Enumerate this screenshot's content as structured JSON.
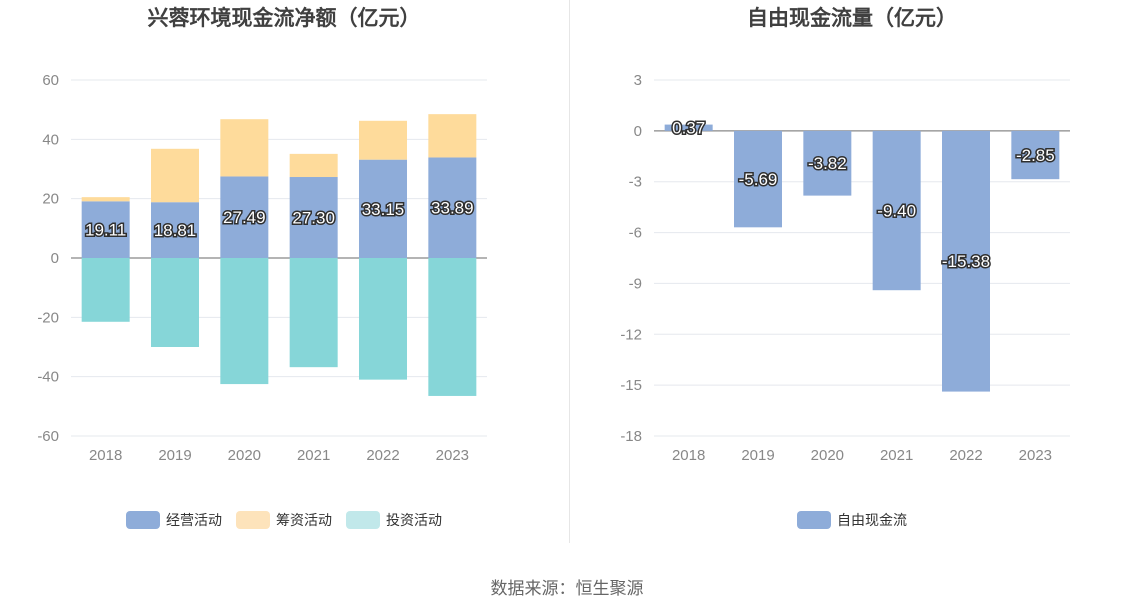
{
  "source_text": "数据来源：恒生聚源",
  "chart_data": [
    {
      "type": "bar",
      "title": "兴蓉环境现金流净额（亿元）",
      "stacked": true,
      "categories": [
        "2018",
        "2019",
        "2020",
        "2021",
        "2022",
        "2023"
      ],
      "ylim": [
        -60,
        60
      ],
      "yticks": [
        60,
        40,
        20,
        0,
        -20,
        -40,
        -60
      ],
      "grid": true,
      "legend_position": "bottom",
      "series": [
        {
          "name": "经营活动",
          "color": "#8eacd9",
          "values": [
            19.11,
            18.81,
            27.49,
            27.3,
            33.15,
            33.89
          ],
          "labels": [
            "19.11",
            "18.81",
            "27.49",
            "27.30",
            "33.15",
            "33.89"
          ]
        },
        {
          "name": "筹资活动",
          "color": "#fedb9b",
          "values": [
            1.4,
            18.0,
            19.3,
            7.8,
            13.1,
            14.6
          ]
        },
        {
          "name": "投资活动",
          "color": "#86d6d8",
          "values": [
            -21.5,
            -30.0,
            -42.5,
            -36.8,
            -41.0,
            -46.5
          ]
        }
      ],
      "legend_colors": [
        "#8eacd9",
        "#fde3bb",
        "#c1e8ea"
      ]
    },
    {
      "type": "bar",
      "title": "自由现金流量（亿元）",
      "categories": [
        "2018",
        "2019",
        "2020",
        "2021",
        "2022",
        "2023"
      ],
      "ylim": [
        -18,
        3
      ],
      "yticks": [
        3,
        0,
        -3,
        -6,
        -9,
        -12,
        -15,
        -18
      ],
      "grid": true,
      "legend_position": "bottom",
      "series": [
        {
          "name": "自由现金流",
          "color": "#8eacd9",
          "values": [
            0.37,
            -5.69,
            -3.82,
            -9.4,
            -15.38,
            -2.85
          ],
          "labels": [
            "0.37",
            "-5.69",
            "-3.82",
            "-9.40",
            "-15.38",
            "-2.85"
          ]
        }
      ],
      "legend_colors": [
        "#8eacd9"
      ]
    }
  ]
}
